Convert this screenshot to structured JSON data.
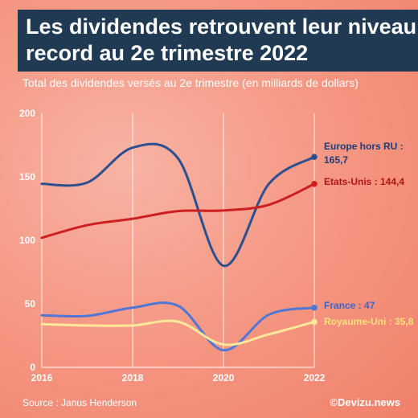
{
  "title_lines": [
    "Les dividendes retrouvent leur niveau",
    "record au 2e trimestre 2022"
  ],
  "subtitle": "Total des dividendes versés au 2e trimestre (en milliards de dollars)",
  "source": "Source : Janus Henderson",
  "brand": "©Devizu.news",
  "chart_data": {
    "type": "line",
    "title": "Les dividendes retrouvent leur niveau record au 2e trimestre 2022",
    "subtitle": "Total des dividendes versés au 2e trimestre (en milliards de dollars)",
    "x": [
      2016,
      2017,
      2018,
      2019,
      2020,
      2021,
      2022
    ],
    "x_tick_labels": [
      "2016",
      "2018",
      "2020",
      "2022"
    ],
    "x_tick_values": [
      2016,
      2018,
      2020,
      2022
    ],
    "y_tick_labels": [
      "0",
      "50",
      "100",
      "150",
      "200"
    ],
    "y_tick_values": [
      0,
      50,
      100,
      150,
      200
    ],
    "xlim": [
      2016,
      2022
    ],
    "ylim": [
      0,
      200
    ],
    "grid": "vertical",
    "series": [
      {
        "name": "Europe hors RU",
        "label_lines": [
          "Europe hors RU :",
          "165,7"
        ],
        "color": "#2c4f8f",
        "label_color": "#1f3c78",
        "values": [
          144.5,
          145.5,
          173,
          164.5,
          80,
          144.5,
          165.7
        ]
      },
      {
        "name": "Etats-Unis",
        "label_lines": [
          "Etats-Unis : 144,4"
        ],
        "color": "#cc1f1f",
        "label_color": "#b01616",
        "values": [
          102,
          112,
          117,
          123,
          123.5,
          128,
          144.4
        ]
      },
      {
        "name": "France",
        "label_lines": [
          "France : 47"
        ],
        "color": "#5077d6",
        "label_color": "#3f64c9",
        "values": [
          41,
          40.5,
          47,
          48.5,
          13.5,
          41.5,
          47
        ]
      },
      {
        "name": "Royaume-Uni",
        "label_lines": [
          "Royaume-Uni : 35,8"
        ],
        "color": "#ffe89a",
        "label_color": "#ffe27a",
        "values": [
          34,
          33,
          33,
          36,
          18,
          26,
          35.8
        ]
      }
    ]
  }
}
